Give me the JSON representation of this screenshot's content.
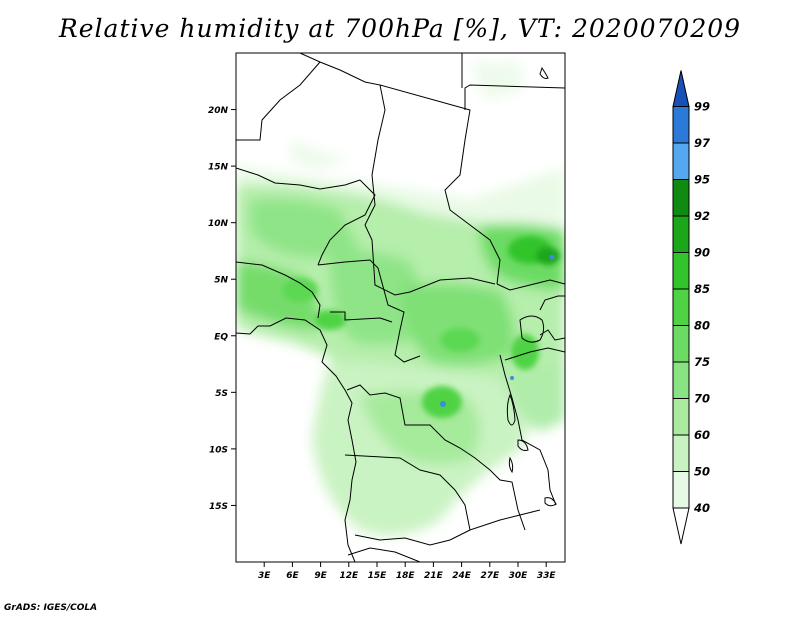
{
  "title": "Relative humidity at 700hPa [%], VT: 2020070209",
  "credit": "GrADS: IGES/COLA",
  "map": {
    "lon_range": [
      0,
      35
    ],
    "lat_range": [
      -20,
      25
    ],
    "lat_ticks": [
      {
        "v": 20,
        "label": "20N"
      },
      {
        "v": 15,
        "label": "15N"
      },
      {
        "v": 10,
        "label": "10N"
      },
      {
        "v": 5,
        "label": "5N"
      },
      {
        "v": 0,
        "label": "EQ"
      },
      {
        "v": -5,
        "label": "5S"
      },
      {
        "v": -10,
        "label": "10S"
      },
      {
        "v": -15,
        "label": "15S"
      }
    ],
    "lon_ticks": [
      {
        "v": 3,
        "label": "3E"
      },
      {
        "v": 6,
        "label": "6E"
      },
      {
        "v": 9,
        "label": "9E"
      },
      {
        "v": 12,
        "label": "12E"
      },
      {
        "v": 15,
        "label": "15E"
      },
      {
        "v": 18,
        "label": "18E"
      },
      {
        "v": 21,
        "label": "21E"
      },
      {
        "v": 24,
        "label": "24E"
      },
      {
        "v": 27,
        "label": "27E"
      },
      {
        "v": 30,
        "label": "30E"
      },
      {
        "v": 33,
        "label": "33E"
      }
    ]
  },
  "colorbar": {
    "levels": [
      {
        "label": "40",
        "color": "#ffffff"
      },
      {
        "label": "50",
        "color": "#e6f9e4"
      },
      {
        "label": "60",
        "color": "#c8f2c1"
      },
      {
        "label": "70",
        "color": "#aaeba0"
      },
      {
        "label": "75",
        "color": "#8ae382"
      },
      {
        "label": "80",
        "color": "#6cdb63"
      },
      {
        "label": "85",
        "color": "#4fd345"
      },
      {
        "label": "90",
        "color": "#33c42b"
      },
      {
        "label": "92",
        "color": "#1ca61a"
      },
      {
        "label": "95",
        "color": "#118a11"
      },
      {
        "label": "97",
        "color": "#55a8f0"
      },
      {
        "label": "99",
        "color": "#2c7ad8"
      }
    ],
    "top_color": "#1650b8"
  }
}
